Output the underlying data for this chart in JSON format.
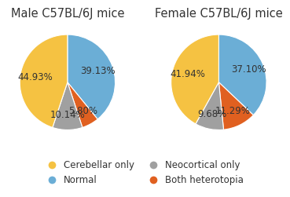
{
  "male_title": "Male C57BL/6J mice",
  "female_title": "Female C57BL/6J mice",
  "male_values": [
    39.13,
    5.8,
    10.14,
    44.93
  ],
  "female_values": [
    37.1,
    11.29,
    9.68,
    41.94
  ],
  "male_labels": [
    "39.13%",
    "5.80%",
    "10.14%",
    "44.93%"
  ],
  "female_labels": [
    "37.10%",
    "11.29%",
    "9.68%",
    "41.94%"
  ],
  "colors": [
    "#6BAED6",
    "#E06020",
    "#A0A0A0",
    "#F5C242"
  ],
  "legend_labels": [
    "Cerebellar only",
    "Normal",
    "Neocortical only",
    "Both heterotopia"
  ],
  "legend_colors": [
    "#F5C242",
    "#6BAED6",
    "#A0A0A0",
    "#E06020"
  ],
  "title_fontsize": 10.5,
  "label_fontsize": 8.5,
  "legend_fontsize": 8.5
}
